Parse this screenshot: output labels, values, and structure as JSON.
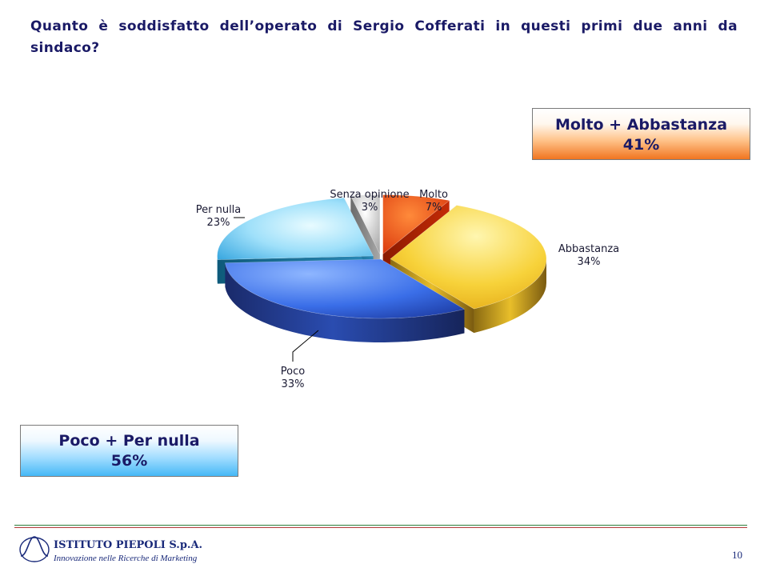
{
  "question": "Quanto è soddisfatto dell’operato di Sergio Cofferati in questi primi due anni da sindaco?",
  "summary_positive": {
    "label": "Molto + Abbastanza",
    "value": "41%"
  },
  "summary_negative": {
    "label": "Poco + Per nulla",
    "value": "56%"
  },
  "chart_data": {
    "type": "pie",
    "title": "",
    "slices": [
      {
        "label": "Molto",
        "value": 7,
        "value_label": "7%",
        "color": "#e8380c",
        "exploded": true
      },
      {
        "label": "Abbastanza",
        "value": 34,
        "value_label": "34%",
        "color": "#f5c81e",
        "exploded": true
      },
      {
        "label": "Poco",
        "value": 33,
        "value_label": "33%",
        "color": "#3a6ee8",
        "exploded": false
      },
      {
        "label": "Per nulla",
        "value": 23,
        "value_label": "23%",
        "color": "#59c4ef",
        "exploded": true
      },
      {
        "label": "Senza opinione",
        "value": 3,
        "value_label": "3%",
        "color": "#c8c8c8",
        "exploded": true
      }
    ],
    "style": "3d-exploded"
  },
  "footer": {
    "company": "ISTITUTO PIEPOLI  S.p.A.",
    "tagline": "Innovazione nelle Ricerche di Marketing",
    "page_number": "10"
  }
}
